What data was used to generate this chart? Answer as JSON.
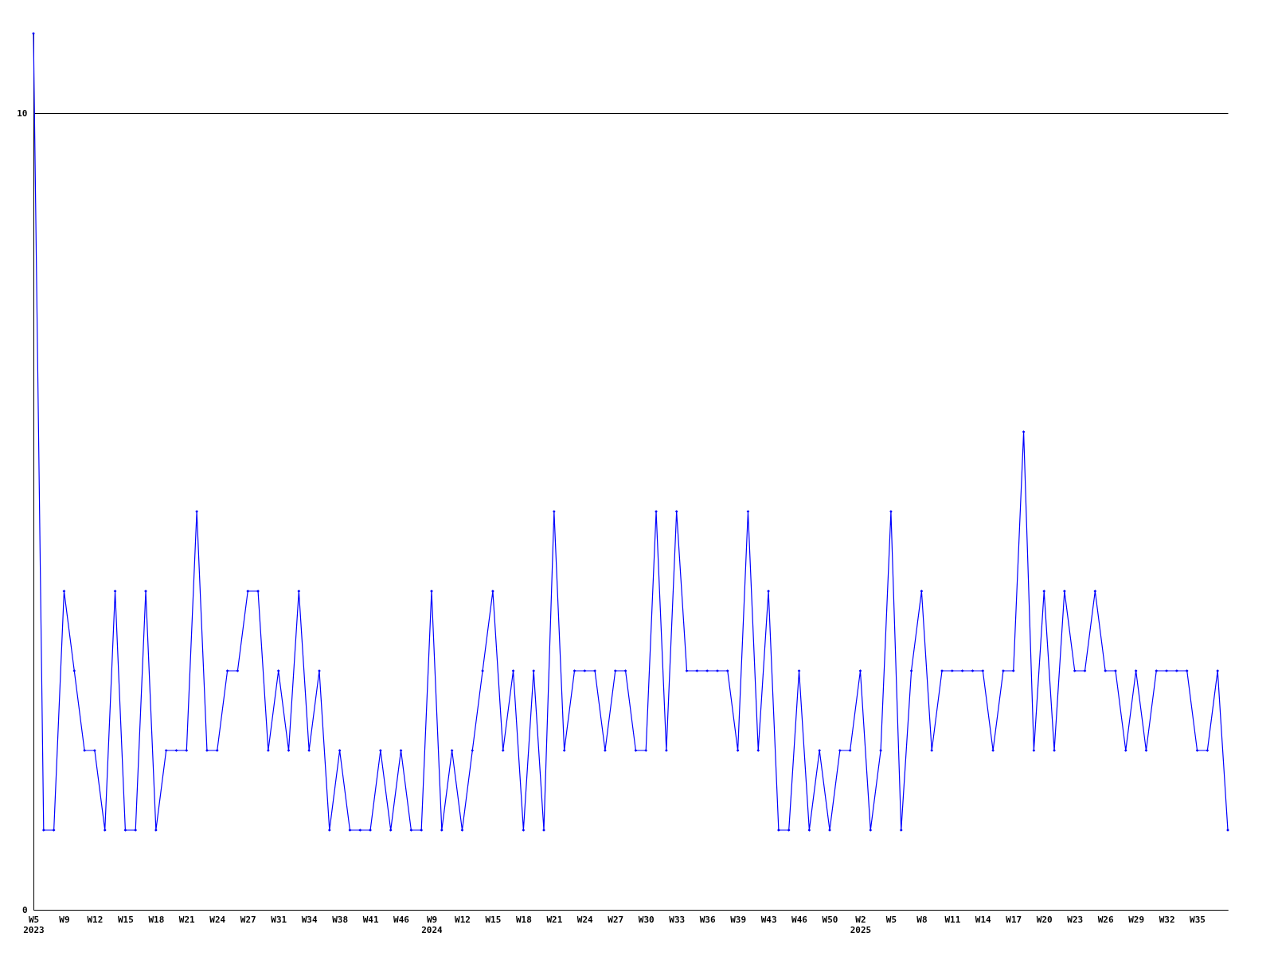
{
  "chart_data": {
    "type": "line",
    "categories": [
      "W5 2023",
      null,
      null,
      "W9",
      null,
      null,
      "W12",
      null,
      null,
      "W15",
      null,
      null,
      "W18",
      null,
      null,
      "W21",
      null,
      null,
      "W24",
      null,
      null,
      "W27",
      null,
      null,
      "W31",
      null,
      null,
      "W34",
      null,
      null,
      "W38",
      null,
      null,
      "W41",
      null,
      null,
      "W46",
      null,
      null,
      "W9 2024",
      null,
      null,
      "W12",
      null,
      null,
      "W15",
      null,
      null,
      "W18",
      null,
      null,
      "W21",
      null,
      null,
      "W24",
      null,
      null,
      "W27",
      null,
      null,
      "W30",
      null,
      null,
      "W33",
      null,
      null,
      "W36",
      null,
      null,
      "W39",
      null,
      null,
      "W43",
      null,
      null,
      "W46",
      null,
      null,
      "W50",
      null,
      null,
      "W2 2025",
      null,
      null,
      "W5",
      null,
      null,
      "W8",
      null,
      null,
      "W11",
      null,
      null,
      "W14",
      null,
      null,
      "W17",
      null,
      null,
      "W20",
      null,
      null,
      "W23",
      null,
      null,
      "W26",
      null,
      null,
      "W29",
      null,
      null,
      "W32",
      null,
      null,
      "W35",
      null,
      null,
      null
    ],
    "series": [
      {
        "color": "#0000ff",
        "values": [
          11,
          1,
          1,
          4,
          3,
          2,
          2,
          1,
          4,
          1,
          1,
          4,
          1,
          2,
          2,
          2,
          5,
          2,
          2,
          3,
          3,
          4,
          4,
          2,
          3,
          2,
          4,
          2,
          3,
          1,
          2,
          1,
          1,
          1,
          2,
          1,
          2,
          1,
          1,
          4,
          1,
          2,
          1,
          2,
          3,
          4,
          2,
          3,
          1,
          3,
          1,
          5,
          2,
          3,
          3,
          3,
          2,
          3,
          3,
          2,
          2,
          5,
          2,
          5,
          3,
          3,
          3,
          3,
          3,
          2,
          5,
          2,
          4,
          1,
          1,
          3,
          1,
          2,
          1,
          2,
          2,
          3,
          1,
          2,
          5,
          1,
          3,
          4,
          2,
          3,
          3,
          3,
          3,
          3,
          2,
          3,
          3,
          6,
          2,
          4,
          2,
          4,
          3,
          3,
          4,
          3,
          3,
          2,
          3,
          2,
          3,
          3,
          3,
          3,
          2,
          2,
          3,
          1
        ]
      }
    ],
    "ylim": [
      0,
      11
    ],
    "yticks": [
      0,
      10
    ],
    "grid": "y",
    "marker": "diamond",
    "line_style": "solid"
  }
}
